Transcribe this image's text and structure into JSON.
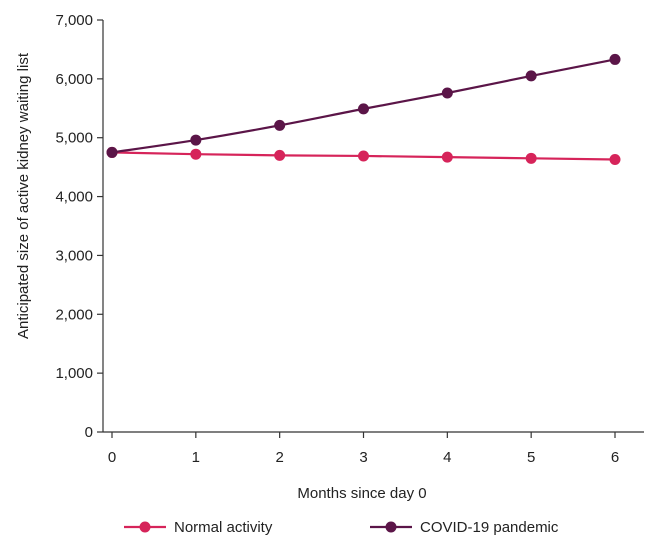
{
  "chart_data": {
    "type": "line",
    "title": "",
    "xlabel": "Months since day 0",
    "ylabel": "Anticipated size of active kidney waiting list",
    "x": [
      0,
      1,
      2,
      3,
      4,
      5,
      6
    ],
    "xlim": [
      0,
      6
    ],
    "ylim": [
      0,
      7000
    ],
    "yticks": [
      0,
      1000,
      2000,
      3000,
      4000,
      5000,
      6000,
      7000
    ],
    "ytick_labels": [
      "0",
      "1,000",
      "2,000",
      "3,000",
      "4,000",
      "5,000",
      "6,000",
      "7,000"
    ],
    "xtick_labels": [
      "0",
      "1",
      "2",
      "3",
      "4",
      "5",
      "6"
    ],
    "grid": false,
    "legend_position": "bottom",
    "series": [
      {
        "name": "Normal activity",
        "color": "#d6245a",
        "values": [
          4750,
          4720,
          4700,
          4690,
          4670,
          4650,
          4630
        ]
      },
      {
        "name": "COVID-19 pandemic",
        "color": "#5b1548",
        "values": [
          4750,
          4960,
          5210,
          5490,
          5760,
          6050,
          6330
        ]
      }
    ]
  }
}
